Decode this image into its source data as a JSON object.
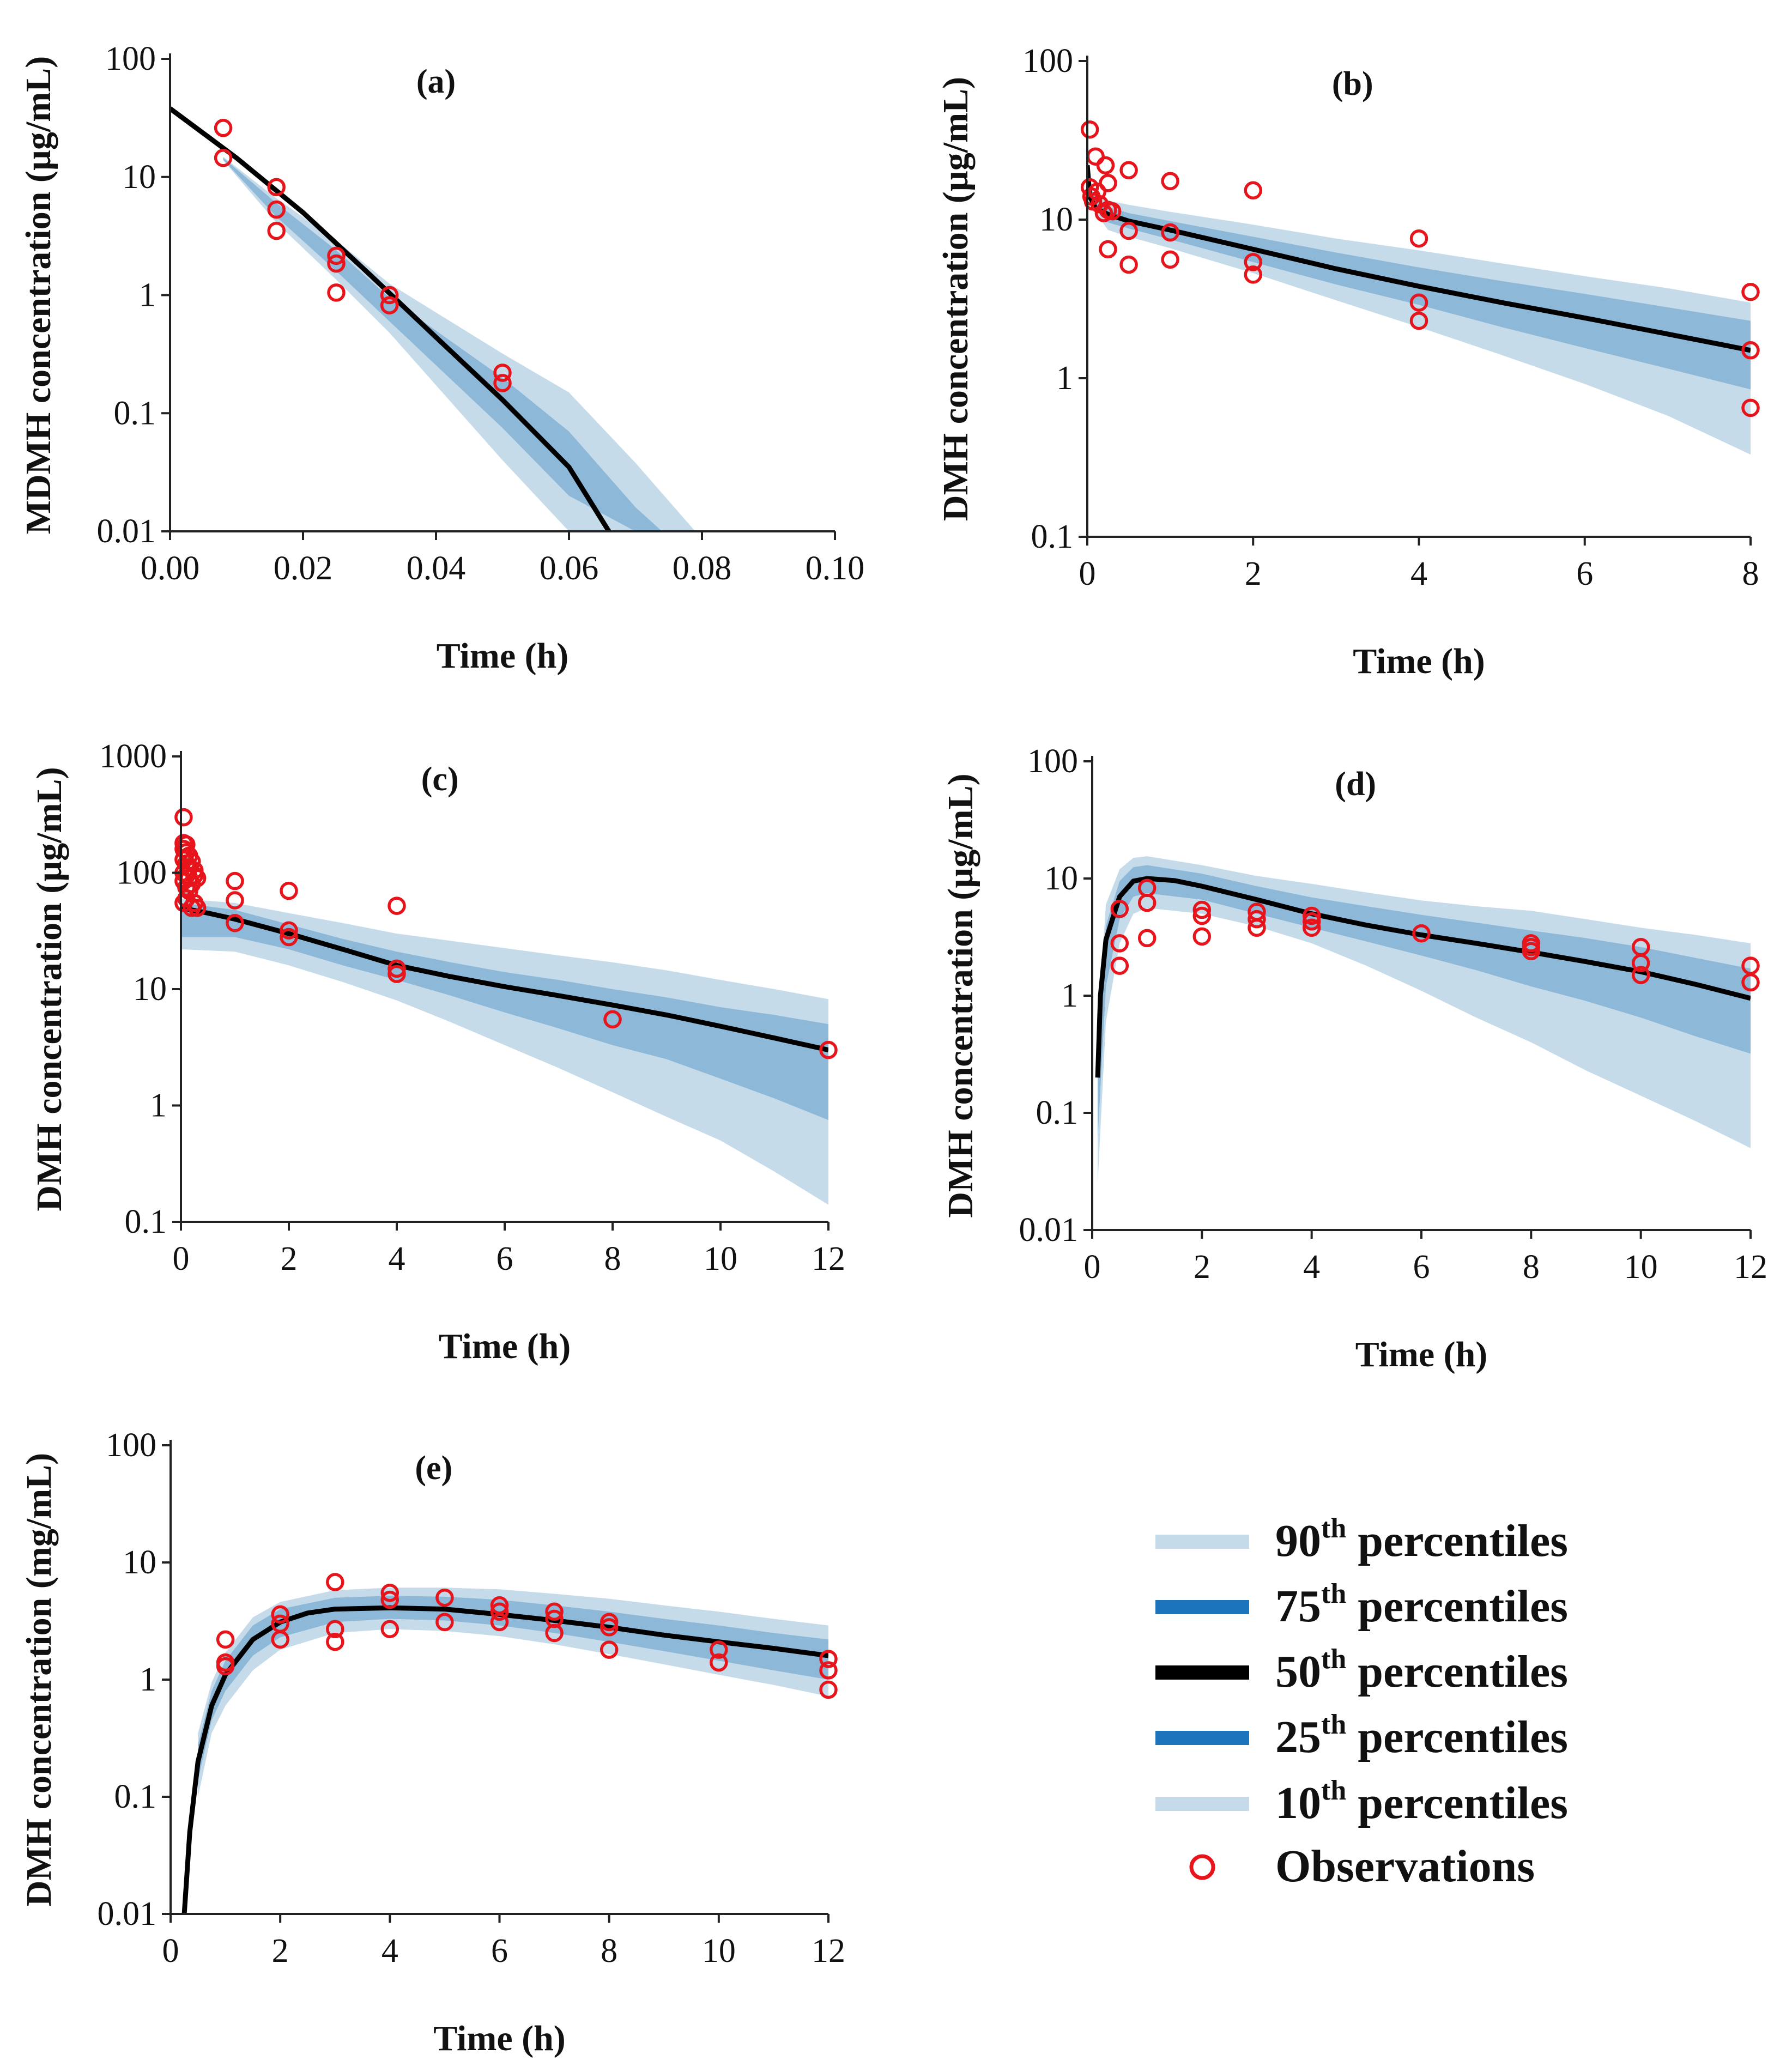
{
  "colors": {
    "band_outer": "#C5DBEA",
    "band_inner": "#8DB8D7",
    "legend_inner_swatch": "#1C75BC",
    "median": "#000000",
    "observation": "#E8141C",
    "axis": "#222222"
  },
  "legend": [
    {
      "key": "p90",
      "num": "90",
      "sup": "th",
      "rest": " percentiles"
    },
    {
      "key": "p75",
      "num": "75",
      "sup": "th",
      "rest": " percentiles"
    },
    {
      "key": "p50",
      "num": "50",
      "sup": "th",
      "rest": " percentiles"
    },
    {
      "key": "p25",
      "num": "25",
      "sup": "th",
      "rest": " percentiles"
    },
    {
      "key": "p10",
      "num": "10",
      "sup": "th",
      "rest": " percentiles"
    },
    {
      "key": "obs",
      "num": "",
      "sup": "",
      "rest": "Observations"
    }
  ],
  "chart_data": [
    {
      "id": "a",
      "type": "line",
      "scale_y": "log",
      "title": "(a)",
      "xlabel": "Time (h)",
      "ylabel": "MDMH concentration (µg/mL)",
      "xlim": [
        0,
        0.1
      ],
      "ylim": [
        0.01,
        100
      ],
      "xticks": [
        0,
        0.02,
        0.04,
        0.06,
        0.08,
        0.1
      ],
      "xtick_labels": [
        "0.00",
        "0.02",
        "0.04",
        "0.06",
        "0.08",
        "0.10"
      ],
      "yticks": [
        0.01,
        0.1,
        1,
        10,
        100
      ],
      "ytick_labels": [
        "0.01",
        "0.1",
        "1",
        "10",
        "100"
      ],
      "median": {
        "x": [
          0.0,
          0.01,
          0.02,
          0.03,
          0.04,
          0.05,
          0.06,
          0.066
        ],
        "y": [
          38,
          14.5,
          5.0,
          1.5,
          0.44,
          0.13,
          0.035,
          0.01
        ]
      },
      "band90": {
        "x": [
          0.008,
          0.016,
          0.025,
          0.033,
          0.05,
          0.06,
          0.07,
          0.079,
          0.08
        ],
        "upper": [
          14.8,
          6.6,
          2.9,
          1.25,
          0.32,
          0.15,
          0.038,
          0.01,
          0.01
        ],
        "lower": [
          13.8,
          4.1,
          1.35,
          0.48,
          0.04,
          0.01,
          0.01,
          0.01,
          0.01
        ]
      },
      "band75": {
        "x": [
          0.008,
          0.016,
          0.025,
          0.033,
          0.05,
          0.06,
          0.07,
          0.074,
          0.08
        ],
        "upper": [
          14.5,
          6.0,
          2.4,
          0.95,
          0.2,
          0.07,
          0.016,
          0.01,
          0.01
        ],
        "lower": [
          14.0,
          4.6,
          1.6,
          0.6,
          0.075,
          0.02,
          0.01,
          0.01,
          0.01
        ]
      },
      "observations": [
        [
          0.008,
          26
        ],
        [
          0.008,
          14.5
        ],
        [
          0.016,
          8.2
        ],
        [
          0.016,
          5.3
        ],
        [
          0.016,
          3.5
        ],
        [
          0.025,
          2.15
        ],
        [
          0.025,
          1.85
        ],
        [
          0.025,
          1.05
        ],
        [
          0.033,
          1.0
        ],
        [
          0.033,
          0.82
        ],
        [
          0.05,
          0.22
        ],
        [
          0.05,
          0.18
        ]
      ]
    },
    {
      "id": "b",
      "type": "line",
      "scale_y": "log",
      "title": "(b)",
      "xlabel": "Time (h)",
      "ylabel": "DMH concentration (µg/mL)",
      "xlim": [
        0,
        8
      ],
      "ylim": [
        0.1,
        100
      ],
      "xticks": [
        0,
        2,
        4,
        6,
        8
      ],
      "xtick_labels": [
        "0",
        "2",
        "4",
        "6",
        "8"
      ],
      "yticks": [
        0.1,
        1,
        10,
        100
      ],
      "ytick_labels": [
        "0.1",
        "1",
        "10",
        "100"
      ],
      "median": {
        "x": [
          0.0,
          0.03,
          0.1,
          0.25,
          0.5,
          1,
          2,
          3,
          4,
          5,
          6,
          7,
          8
        ],
        "y": [
          22,
          14,
          11.8,
          10.8,
          9.8,
          8.6,
          6.5,
          4.9,
          3.8,
          3.0,
          2.4,
          1.9,
          1.5
        ]
      },
      "band90": {
        "x": [
          0.03,
          0.25,
          0.5,
          1,
          2,
          3,
          4,
          5,
          6,
          7,
          8
        ],
        "upper": [
          15.5,
          13.2,
          12.4,
          11.2,
          9.3,
          7.6,
          6.4,
          5.3,
          4.4,
          3.7,
          3.0
        ],
        "lower": [
          12.5,
          8.6,
          7.8,
          6.6,
          4.6,
          3.1,
          2.1,
          1.4,
          0.92,
          0.58,
          0.33
        ]
      },
      "band75": {
        "x": [
          0.03,
          0.25,
          0.5,
          1,
          2,
          3,
          4,
          5,
          6,
          7,
          8
        ],
        "upper": [
          14.8,
          12.0,
          11.0,
          9.8,
          7.8,
          6.2,
          5.0,
          4.1,
          3.4,
          2.8,
          2.3
        ],
        "lower": [
          13.0,
          9.6,
          8.8,
          7.5,
          5.4,
          3.9,
          2.9,
          2.1,
          1.55,
          1.15,
          0.85
        ]
      },
      "observations": [
        [
          0.03,
          37
        ],
        [
          0.03,
          16
        ],
        [
          0.05,
          14
        ],
        [
          0.07,
          13
        ],
        [
          0.1,
          25
        ],
        [
          0.12,
          15
        ],
        [
          0.15,
          12.5
        ],
        [
          0.2,
          11
        ],
        [
          0.22,
          22
        ],
        [
          0.25,
          17
        ],
        [
          0.25,
          11.5
        ],
        [
          0.25,
          6.5
        ],
        [
          0.3,
          11.3
        ],
        [
          0.5,
          20.5
        ],
        [
          0.5,
          8.5
        ],
        [
          0.5,
          5.2
        ],
        [
          1,
          17.5
        ],
        [
          1,
          8.3
        ],
        [
          1,
          5.6
        ],
        [
          2,
          15.3
        ],
        [
          2,
          5.4
        ],
        [
          2,
          4.5
        ],
        [
          4,
          7.6
        ],
        [
          4,
          3.0
        ],
        [
          4,
          2.3
        ],
        [
          8,
          3.5
        ],
        [
          8,
          1.5
        ],
        [
          8,
          0.65
        ]
      ]
    },
    {
      "id": "c",
      "type": "line",
      "scale_y": "log",
      "title": "(c)",
      "xlabel": "Time (h)",
      "ylabel": "DMH concentration (µg/mL)",
      "xlim": [
        0,
        12
      ],
      "ylim": [
        0.1,
        1000
      ],
      "xticks": [
        0,
        2,
        4,
        6,
        8,
        10,
        12
      ],
      "xtick_labels": [
        "0",
        "2",
        "4",
        "6",
        "8",
        "10",
        "12"
      ],
      "yticks": [
        0.1,
        1,
        10,
        100,
        1000
      ],
      "ytick_labels": [
        "0.1",
        "1",
        "10",
        "100",
        "1000"
      ],
      "median": {
        "x": [
          0,
          0.5,
          1,
          2,
          3,
          4,
          5,
          6,
          7,
          8,
          9,
          10,
          11,
          12
        ],
        "y": [
          50,
          45,
          40,
          30,
          22,
          16,
          12.8,
          10.5,
          8.8,
          7.3,
          6.0,
          4.8,
          3.8,
          3.0
        ]
      },
      "band90": {
        "x": [
          0,
          1,
          2,
          3,
          4,
          5,
          6,
          7,
          8,
          9,
          10,
          11,
          12
        ],
        "upper": [
          60,
          55,
          45,
          37,
          30,
          26,
          22.5,
          19.5,
          17,
          14.5,
          12,
          10,
          8.2
        ],
        "lower": [
          22,
          21,
          16,
          11.5,
          8.0,
          5.2,
          3.3,
          2.1,
          1.3,
          0.8,
          0.5,
          0.27,
          0.14
        ]
      },
      "band75": {
        "x": [
          0,
          1,
          2,
          3,
          4,
          5,
          6,
          7,
          8,
          9,
          10,
          11,
          12
        ],
        "upper": [
          55,
          48,
          36,
          27,
          21,
          17,
          14,
          12,
          10,
          8.5,
          7.0,
          6.0,
          5.0
        ],
        "lower": [
          28,
          28,
          22,
          16,
          12,
          8.8,
          6.3,
          4.6,
          3.3,
          2.5,
          1.7,
          1.15,
          0.75
        ]
      },
      "observations": [
        [
          0.05,
          300
        ],
        [
          0.05,
          180
        ],
        [
          0.05,
          160
        ],
        [
          0.05,
          130
        ],
        [
          0.05,
          100
        ],
        [
          0.05,
          85
        ],
        [
          0.05,
          55
        ],
        [
          0.1,
          175
        ],
        [
          0.1,
          150
        ],
        [
          0.1,
          120
        ],
        [
          0.1,
          95
        ],
        [
          0.1,
          75
        ],
        [
          0.1,
          60
        ],
        [
          0.15,
          140
        ],
        [
          0.15,
          110
        ],
        [
          0.15,
          90
        ],
        [
          0.15,
          70
        ],
        [
          0.2,
          125
        ],
        [
          0.2,
          80
        ],
        [
          0.2,
          50
        ],
        [
          0.25,
          105
        ],
        [
          0.25,
          95
        ],
        [
          0.25,
          55
        ],
        [
          0.3,
          90
        ],
        [
          0.3,
          50
        ],
        [
          1,
          85
        ],
        [
          1,
          58
        ],
        [
          1,
          37
        ],
        [
          2,
          70
        ],
        [
          2,
          32
        ],
        [
          2,
          28
        ],
        [
          4,
          52
        ],
        [
          4,
          15
        ],
        [
          4,
          13.5
        ],
        [
          8,
          5.5
        ],
        [
          12,
          3.0
        ]
      ]
    },
    {
      "id": "d",
      "type": "line",
      "scale_y": "log",
      "title": "(d)",
      "xlabel": "Time (h)",
      "ylabel": "DMH concentration (µg/mL)",
      "xlim": [
        0,
        12
      ],
      "ylim": [
        0.01,
        100
      ],
      "xticks": [
        0,
        2,
        4,
        6,
        8,
        10,
        12
      ],
      "xtick_labels": [
        "0",
        "2",
        "4",
        "6",
        "8",
        "10",
        "12"
      ],
      "yticks": [
        0.01,
        0.1,
        1,
        10,
        100
      ],
      "ytick_labels": [
        "0.01",
        "0.1",
        "1",
        "10",
        "100"
      ],
      "median": {
        "x": [
          0.1,
          0.15,
          0.25,
          0.5,
          0.75,
          1,
          1.5,
          2,
          3,
          4,
          5,
          6,
          7,
          8,
          9,
          10,
          11,
          12
        ],
        "y": [
          0.2,
          1.0,
          3.0,
          7.0,
          9.5,
          10,
          9.6,
          8.6,
          6.6,
          5.0,
          4.0,
          3.3,
          2.8,
          2.35,
          1.95,
          1.6,
          1.25,
          0.95
        ]
      },
      "band90": {
        "x": [
          0.1,
          0.25,
          0.5,
          0.75,
          1,
          2,
          3,
          4,
          5,
          6,
          7,
          8,
          9,
          10,
          11,
          12
        ],
        "upper": [
          0.6,
          6.0,
          12.0,
          15.0,
          15.5,
          13.0,
          10.5,
          9.0,
          7.6,
          6.5,
          5.8,
          5.3,
          4.5,
          3.8,
          3.3,
          2.8
        ],
        "lower": [
          0.025,
          0.6,
          2.8,
          5.0,
          5.6,
          5.0,
          3.9,
          2.8,
          1.8,
          1.1,
          0.65,
          0.4,
          0.23,
          0.14,
          0.085,
          0.05
        ]
      },
      "band75": {
        "x": [
          0.1,
          0.25,
          0.5,
          0.75,
          1,
          2,
          3,
          4,
          5,
          6,
          7,
          8,
          9,
          10,
          11,
          12
        ],
        "upper": [
          0.4,
          4.0,
          9.5,
          12.5,
          13.0,
          11.0,
          8.6,
          6.9,
          5.8,
          4.9,
          4.2,
          3.6,
          3.1,
          2.6,
          2.1,
          1.7
        ],
        "lower": [
          0.06,
          1.2,
          4.5,
          7.0,
          7.5,
          6.6,
          5.0,
          3.8,
          2.9,
          2.2,
          1.65,
          1.2,
          0.9,
          0.65,
          0.45,
          0.32
        ]
      },
      "observations": [
        [
          0.5,
          5.5
        ],
        [
          0.5,
          2.8
        ],
        [
          0.5,
          1.8
        ],
        [
          1,
          8.3
        ],
        [
          1,
          6.2
        ],
        [
          1,
          3.1
        ],
        [
          2,
          5.4
        ],
        [
          2,
          4.8
        ],
        [
          2,
          3.2
        ],
        [
          3,
          5.2
        ],
        [
          3,
          4.5
        ],
        [
          3,
          3.8
        ],
        [
          4,
          4.8
        ],
        [
          4,
          4.3
        ],
        [
          4,
          3.8
        ],
        [
          6,
          3.4
        ],
        [
          8,
          2.8
        ],
        [
          8,
          2.6
        ],
        [
          8,
          2.4
        ],
        [
          10,
          2.6
        ],
        [
          10,
          1.9
        ],
        [
          10,
          1.5
        ],
        [
          12,
          1.8
        ],
        [
          12,
          1.3
        ]
      ]
    },
    {
      "id": "e",
      "type": "line",
      "scale_y": "log",
      "title": "(e)",
      "xlabel": "Time (h)",
      "ylabel": "DMH concentration (mg/mL)",
      "xlim": [
        0,
        12
      ],
      "ylim": [
        0.01,
        100
      ],
      "xticks": [
        0,
        2,
        4,
        6,
        8,
        10,
        12
      ],
      "xtick_labels": [
        "0",
        "2",
        "4",
        "6",
        "8",
        "10",
        "12"
      ],
      "yticks": [
        0.01,
        0.1,
        1,
        10,
        100
      ],
      "ytick_labels": [
        "0.01",
        "0.1",
        "1",
        "10",
        "100"
      ],
      "median": {
        "x": [
          0.25,
          0.35,
          0.5,
          0.75,
          1,
          1.5,
          2,
          2.5,
          3,
          4,
          5,
          6,
          7,
          8,
          9,
          10,
          11,
          12
        ],
        "y": [
          0.01,
          0.05,
          0.2,
          0.6,
          1.1,
          2.2,
          3.1,
          3.7,
          4.0,
          4.1,
          4.0,
          3.6,
          3.2,
          2.8,
          2.4,
          2.1,
          1.85,
          1.6
        ]
      },
      "band90": {
        "x": [
          0.5,
          0.75,
          1,
          1.5,
          2,
          3,
          4,
          5,
          6,
          7,
          8,
          9,
          10,
          11,
          12
        ],
        "upper": [
          0.35,
          0.95,
          1.7,
          3.4,
          4.6,
          5.8,
          6.1,
          6.1,
          5.9,
          5.4,
          4.9,
          4.3,
          3.8,
          3.3,
          2.9
        ],
        "lower": [
          0.1,
          0.35,
          0.6,
          1.2,
          1.8,
          2.5,
          2.7,
          2.6,
          2.35,
          2.0,
          1.65,
          1.35,
          1.1,
          0.9,
          0.72
        ]
      },
      "band75": {
        "x": [
          0.5,
          0.75,
          1,
          1.5,
          2,
          3,
          4,
          5,
          6,
          7,
          8,
          9,
          10,
          11,
          12
        ],
        "upper": [
          0.28,
          0.8,
          1.45,
          2.9,
          4.0,
          5.0,
          5.2,
          5.1,
          4.8,
          4.3,
          3.8,
          3.3,
          2.9,
          2.5,
          2.2
        ],
        "lower": [
          0.14,
          0.45,
          0.8,
          1.6,
          2.3,
          3.1,
          3.3,
          3.2,
          2.9,
          2.5,
          2.1,
          1.75,
          1.45,
          1.2,
          1.0
        ]
      },
      "observations": [
        [
          1,
          2.2
        ],
        [
          1,
          1.4
        ],
        [
          1,
          1.3
        ],
        [
          2,
          3.6
        ],
        [
          2,
          3.0
        ],
        [
          2,
          2.2
        ],
        [
          3,
          6.8
        ],
        [
          3,
          2.7
        ],
        [
          3,
          2.1
        ],
        [
          4,
          5.5
        ],
        [
          4,
          4.8
        ],
        [
          4,
          2.7
        ],
        [
          5,
          5.0
        ],
        [
          5,
          3.1
        ],
        [
          6,
          4.3
        ],
        [
          6,
          3.8
        ],
        [
          6,
          3.1
        ],
        [
          7,
          3.8
        ],
        [
          7,
          3.3
        ],
        [
          7,
          2.5
        ],
        [
          8,
          3.1
        ],
        [
          8,
          2.8
        ],
        [
          8,
          1.8
        ],
        [
          10,
          1.8
        ],
        [
          10,
          1.4
        ],
        [
          12,
          1.5
        ],
        [
          12,
          1.2
        ],
        [
          12,
          0.82
        ]
      ]
    }
  ]
}
